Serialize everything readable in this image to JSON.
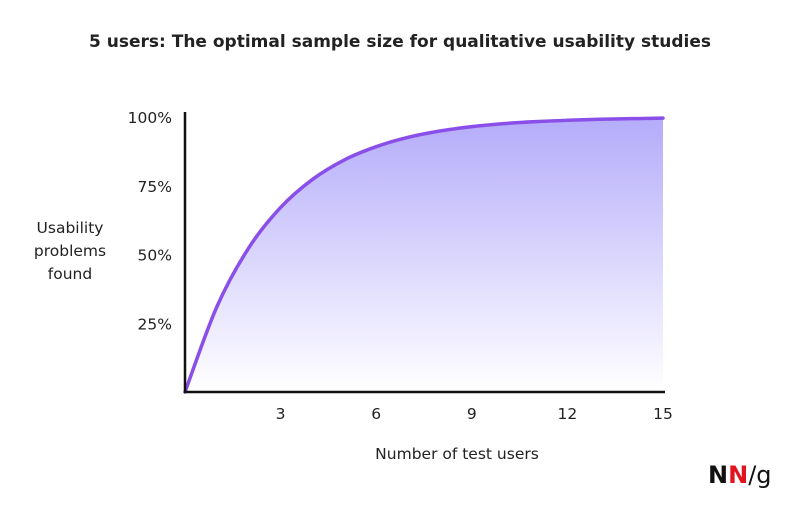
{
  "chart_data": {
    "type": "area-line",
    "title": "5 users: The optimal sample size for qualitative usability studies",
    "x_label": "Number of test users",
    "y_label": "Usability problems found",
    "x": [
      0,
      1,
      2,
      3,
      4,
      5,
      6,
      7,
      8,
      9,
      10,
      11,
      12,
      13,
      14,
      15
    ],
    "series": [
      {
        "name": "Usability problems found",
        "color": "#8a4fe8",
        "values": [
          0,
          31,
          52.4,
          67.1,
          77.3,
          84.4,
          89.2,
          92.6,
          94.9,
          96.5,
          97.6,
          98.3,
          98.8,
          99.2,
          99.4,
          99.6
        ]
      }
    ],
    "xlim": [
      0,
      15
    ],
    "xticks": [
      3,
      6,
      9,
      12,
      15
    ],
    "ylim": [
      0,
      100
    ],
    "yticks": [
      {
        "value": 25,
        "label": "25%"
      },
      {
        "value": 50,
        "label": "50%"
      },
      {
        "value": 75,
        "label": "75%"
      },
      {
        "value": 100,
        "label": "100%"
      }
    ],
    "grid": false
  },
  "brand": [
    "N",
    "N",
    "/g"
  ]
}
